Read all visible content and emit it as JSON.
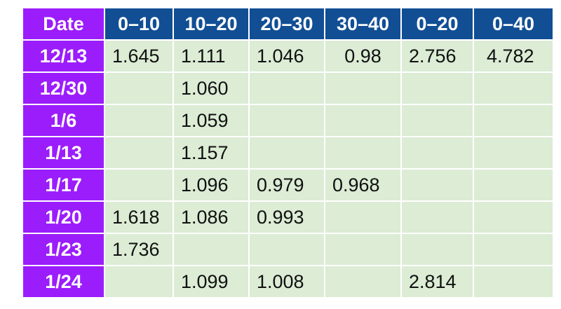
{
  "table": {
    "headers": [
      "Date",
      "0–10",
      "10–20",
      "20–30",
      "30–40",
      "0–20",
      "0–40"
    ],
    "rows": [
      [
        "12/13",
        "1.645",
        "1.111",
        "1.046",
        "0.98",
        "2.756",
        "4.782"
      ],
      [
        "12/30",
        "",
        "1.060",
        "",
        "",
        "",
        ""
      ],
      [
        "1/6",
        "",
        "1.059",
        "",
        "",
        "",
        ""
      ],
      [
        "1/13",
        "",
        "1.157",
        "",
        "",
        "",
        ""
      ],
      [
        "1/17",
        "",
        "1.096",
        "0.979",
        "0.968",
        "",
        ""
      ],
      [
        "1/20",
        "1.618",
        "1.086",
        "0.993",
        "",
        "",
        ""
      ],
      [
        "1/23",
        "1.736",
        "",
        "",
        "",
        "",
        ""
      ],
      [
        "1/24",
        "",
        "1.099",
        "1.008",
        "",
        "2.814",
        ""
      ]
    ]
  },
  "colors": {
    "date_header_bg": "#9b1dfb",
    "depth_header_bg": "#114e94",
    "cell_bg": "#dcecd5",
    "header_text": "#ffffff"
  }
}
